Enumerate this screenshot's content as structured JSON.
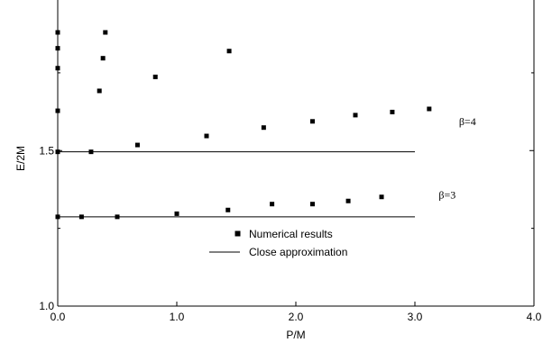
{
  "chart_data": {
    "type": "scatter",
    "xlabel": "P/M",
    "ylabel": "E/2M",
    "xlim": [
      0.0,
      4.0
    ],
    "ylim": [
      1.0,
      2.1
    ],
    "x_ticks": [
      "0.0",
      "1.0",
      "2.0",
      "3.0",
      "4.0"
    ],
    "y_ticks": [
      "1.0",
      "1.5"
    ],
    "x_tick_values": [
      0.0,
      1.0,
      2.0,
      3.0,
      4.0
    ],
    "y_tick_values": [
      1.0,
      1.5
    ],
    "y_minor_ticks": [
      1.25,
      1.75
    ],
    "legend": {
      "position": "center",
      "entries": [
        {
          "label": "Numerical results",
          "marker": "square"
        },
        {
          "label": "Close approximation",
          "marker": "line"
        }
      ]
    },
    "series": [
      {
        "name": "Numerical results",
        "kind": "points",
        "points": [
          [
            0.0,
            1.287
          ],
          [
            0.2,
            1.287
          ],
          [
            0.5,
            1.287
          ],
          [
            1.0,
            1.297
          ],
          [
            1.43,
            1.309
          ],
          [
            1.8,
            1.328
          ],
          [
            2.14,
            1.328
          ],
          [
            2.44,
            1.338
          ],
          [
            2.72,
            1.351
          ],
          [
            0.0,
            1.496
          ],
          [
            0.28,
            1.496
          ],
          [
            0.67,
            1.518
          ],
          [
            1.25,
            1.547
          ],
          [
            1.73,
            1.574
          ],
          [
            2.14,
            1.594
          ],
          [
            2.5,
            1.614
          ],
          [
            2.81,
            1.624
          ],
          [
            3.12,
            1.634
          ],
          [
            0.0,
            1.628
          ],
          [
            0.35,
            1.692
          ],
          [
            0.82,
            1.737
          ],
          [
            0.0,
            1.765
          ],
          [
            0.38,
            1.797
          ],
          [
            0.0,
            1.829
          ],
          [
            1.44,
            1.82
          ],
          [
            0.4,
            1.88
          ],
          [
            0.0,
            1.88
          ]
        ]
      },
      {
        "name": "Close approximation",
        "kind": "lines",
        "lines": [
          {
            "y": 1.287,
            "x": [
              0.0,
              3.0
            ]
          },
          {
            "y": 1.496,
            "x": [
              0.0,
              3.0
            ]
          }
        ]
      }
    ],
    "annotations": [
      {
        "text": "β=4",
        "x": 3.37,
        "y": 1.594
      },
      {
        "text": "β=3",
        "x": 3.2,
        "y": 1.358
      }
    ]
  }
}
